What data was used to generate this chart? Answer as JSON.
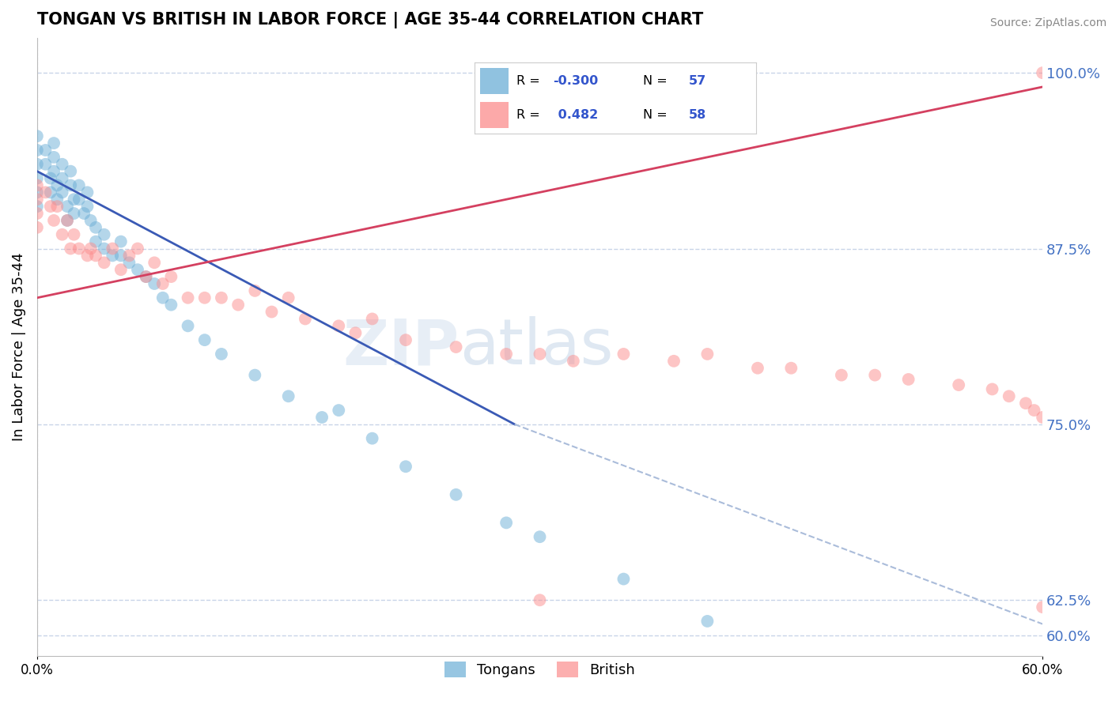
{
  "title": "TONGAN VS BRITISH IN LABOR FORCE | AGE 35-44 CORRELATION CHART",
  "source": "Source: ZipAtlas.com",
  "ylabel": "In Labor Force | Age 35-44",
  "y_tick_positions": [
    0.6,
    0.625,
    0.75,
    0.875,
    1.0
  ],
  "y_tick_labels": [
    "60.0%",
    "62.5%",
    "75.0%",
    "87.5%",
    "100.0%"
  ],
  "xlim": [
    0.0,
    0.6
  ],
  "ylim": [
    0.585,
    1.025
  ],
  "legend_labels": [
    "Tongans",
    "British"
  ],
  "watermark": "ZIPatlas",
  "blue_color": "#6baed6",
  "pink_color": "#fc8d8d",
  "blue_line_color": "#3a5ab5",
  "pink_line_color": "#d44060",
  "dashed_line_color": "#aabcda",
  "grid_color": "#c8d4e8",
  "background": "#ffffff",
  "blue_R": "-0.300",
  "blue_N": "57",
  "pink_R": "0.482",
  "pink_N": "58",
  "blue_scatter_x": [
    0.0,
    0.0,
    0.0,
    0.0,
    0.0,
    0.0,
    0.005,
    0.005,
    0.008,
    0.008,
    0.01,
    0.01,
    0.01,
    0.012,
    0.012,
    0.015,
    0.015,
    0.015,
    0.018,
    0.018,
    0.02,
    0.02,
    0.022,
    0.022,
    0.025,
    0.025,
    0.028,
    0.03,
    0.03,
    0.032,
    0.035,
    0.035,
    0.04,
    0.04,
    0.045,
    0.05,
    0.05,
    0.055,
    0.06,
    0.065,
    0.07,
    0.075,
    0.08,
    0.09,
    0.1,
    0.11,
    0.13,
    0.15,
    0.17,
    0.2,
    0.22,
    0.25,
    0.3,
    0.35,
    0.4,
    0.28,
    0.18
  ],
  "blue_scatter_y": [
    0.955,
    0.945,
    0.935,
    0.925,
    0.915,
    0.905,
    0.945,
    0.935,
    0.925,
    0.915,
    0.95,
    0.94,
    0.93,
    0.92,
    0.91,
    0.935,
    0.925,
    0.915,
    0.905,
    0.895,
    0.93,
    0.92,
    0.91,
    0.9,
    0.92,
    0.91,
    0.9,
    0.915,
    0.905,
    0.895,
    0.89,
    0.88,
    0.885,
    0.875,
    0.87,
    0.88,
    0.87,
    0.865,
    0.86,
    0.855,
    0.85,
    0.84,
    0.835,
    0.82,
    0.81,
    0.8,
    0.785,
    0.77,
    0.755,
    0.74,
    0.72,
    0.7,
    0.67,
    0.64,
    0.61,
    0.68,
    0.76
  ],
  "pink_scatter_x": [
    0.0,
    0.0,
    0.0,
    0.0,
    0.005,
    0.008,
    0.01,
    0.012,
    0.015,
    0.018,
    0.02,
    0.022,
    0.025,
    0.03,
    0.032,
    0.035,
    0.04,
    0.045,
    0.05,
    0.055,
    0.06,
    0.065,
    0.07,
    0.075,
    0.08,
    0.09,
    0.1,
    0.11,
    0.12,
    0.13,
    0.14,
    0.15,
    0.16,
    0.18,
    0.19,
    0.2,
    0.22,
    0.25,
    0.28,
    0.3,
    0.32,
    0.35,
    0.38,
    0.4,
    0.43,
    0.45,
    0.48,
    0.5,
    0.52,
    0.55,
    0.57,
    0.58,
    0.59,
    0.595,
    0.6,
    0.3,
    0.6,
    0.6
  ],
  "pink_scatter_y": [
    0.92,
    0.91,
    0.9,
    0.89,
    0.915,
    0.905,
    0.895,
    0.905,
    0.885,
    0.895,
    0.875,
    0.885,
    0.875,
    0.87,
    0.875,
    0.87,
    0.865,
    0.875,
    0.86,
    0.87,
    0.875,
    0.855,
    0.865,
    0.85,
    0.855,
    0.84,
    0.84,
    0.84,
    0.835,
    0.845,
    0.83,
    0.84,
    0.825,
    0.82,
    0.815,
    0.825,
    0.81,
    0.805,
    0.8,
    0.8,
    0.795,
    0.8,
    0.795,
    0.8,
    0.79,
    0.79,
    0.785,
    0.785,
    0.782,
    0.778,
    0.775,
    0.77,
    0.765,
    0.76,
    0.755,
    0.625,
    0.62,
    1.0
  ],
  "blue_line_x": [
    0.0,
    0.285
  ],
  "blue_line_y": [
    0.93,
    0.75
  ],
  "pink_line_x": [
    0.0,
    0.6
  ],
  "pink_line_y": [
    0.84,
    0.99
  ],
  "dashed_line_x": [
    0.285,
    0.6
  ],
  "dashed_line_y": [
    0.75,
    0.608
  ]
}
